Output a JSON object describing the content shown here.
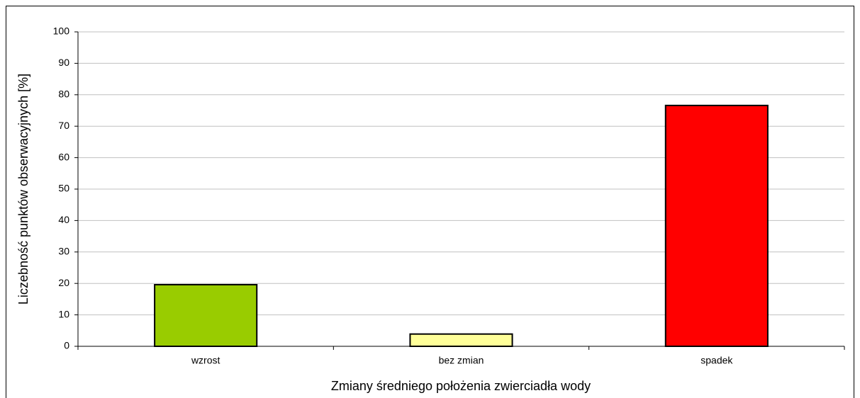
{
  "chart_data": {
    "type": "bar",
    "x_label": "Zmiany średniego położenia zwierciadła wody",
    "y_label": "Liczebność punktów obserwacyjnych [%]",
    "categories": [
      "wzrost",
      "bez zmian",
      "spadek"
    ],
    "values": [
      19.6,
      3.9,
      76.6
    ],
    "colors": [
      "#99cc00",
      "#ffff99",
      "#ff0000"
    ],
    "ylim": [
      0,
      100
    ],
    "yticks": [
      0,
      10,
      20,
      30,
      40,
      50,
      60,
      70,
      80,
      90,
      100
    ],
    "grid": true
  }
}
